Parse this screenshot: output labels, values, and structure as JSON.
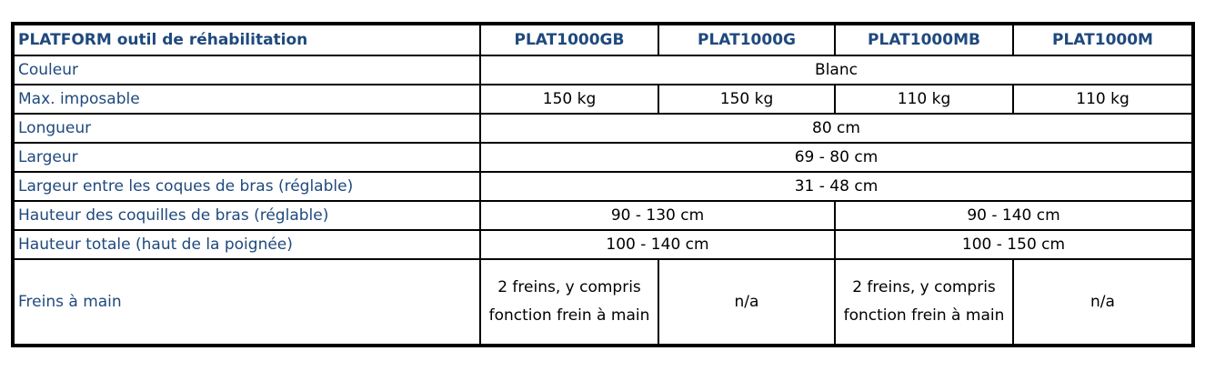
{
  "header": {
    "title": "PLATFORM outil de réhabilitation",
    "models": [
      "PLAT1000GB",
      "PLAT1000G",
      "PLAT1000MB",
      "PLAT1000M"
    ]
  },
  "rows": {
    "couleur": {
      "label": "Couleur",
      "value": "Blanc"
    },
    "max": {
      "label": "Max. imposable",
      "values": [
        "150 kg",
        "150 kg",
        "110 kg",
        "110 kg"
      ]
    },
    "longueur": {
      "label": "Longueur",
      "value": "80 cm"
    },
    "largeur": {
      "label": "Largeur",
      "value": "69 - 80 cm"
    },
    "largeur_coques": {
      "label": "Largeur entre les coques de bras (réglable)",
      "value": "31 - 48 cm"
    },
    "hauteur_coquilles": {
      "label": "Hauteur des coquilles de bras (réglable)",
      "values": [
        "90 - 130 cm",
        "90 - 140 cm"
      ]
    },
    "hauteur_totale": {
      "label": "Hauteur totale (haut de la poignée)",
      "values": [
        "100 - 140 cm",
        "100 - 150 cm"
      ]
    },
    "freins": {
      "label": "Freins à main",
      "values": [
        "2 freins, y compris fonction frein à main",
        "n/a",
        "2 freins, y compris fonction frein à main",
        "n/a"
      ]
    }
  },
  "colors": {
    "label_text": "#1F497D",
    "border": "#000000"
  }
}
